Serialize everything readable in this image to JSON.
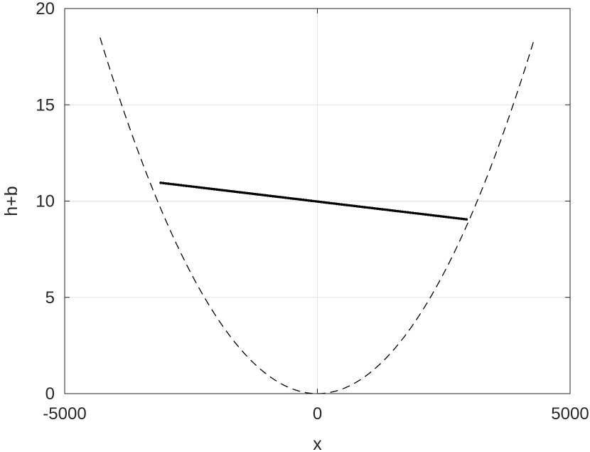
{
  "chart_data": {
    "type": "line",
    "title": "",
    "xlabel": "x",
    "ylabel": "h+b",
    "xlim": [
      -5000,
      5000
    ],
    "ylim": [
      0,
      20
    ],
    "xticks": [
      -5000,
      0,
      5000
    ],
    "xtick_labels": [
      "-5000",
      "0",
      "5000"
    ],
    "yticks": [
      0,
      5,
      10,
      15,
      20
    ],
    "ytick_labels": [
      "0",
      "5",
      "10",
      "15",
      "20"
    ],
    "grid": true,
    "legend": "none",
    "series": [
      {
        "style": "dashed",
        "color": "#000000",
        "function": "y = x^2 / 1000000",
        "x_range": [
          -4300,
          4300
        ]
      },
      {
        "style": "solid-dotted",
        "color": "#000000",
        "x": [
          -3100,
          2950
        ],
        "y": [
          10.95,
          9.05
        ]
      }
    ]
  }
}
